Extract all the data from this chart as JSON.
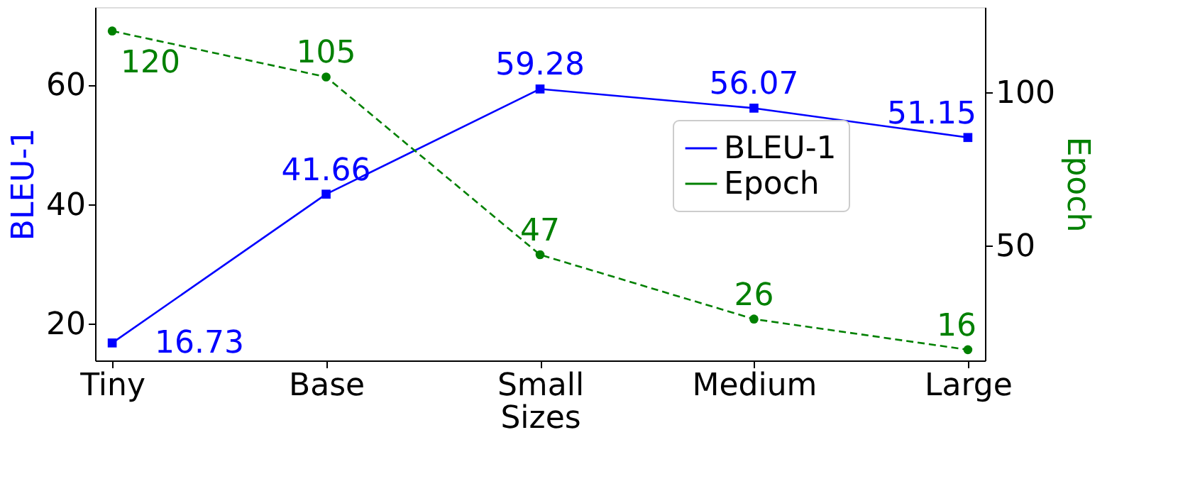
{
  "chart_data": {
    "type": "line",
    "xlabel": "Sizes",
    "ylabel": "BLEU-1",
    "y2label": "Epoch",
    "categories": [
      "Tiny",
      "Base",
      "Small",
      "Medium",
      "Large"
    ],
    "series": [
      {
        "name": "BLEU-1",
        "color": "#0000ff",
        "values": [
          16.73,
          41.66,
          59.28,
          56.07,
          51.15
        ],
        "marker": "square",
        "line_style": "solid"
      },
      {
        "name": "Epoch",
        "color": "#008000",
        "values": [
          120,
          105,
          47,
          26,
          16
        ],
        "marker": "circle",
        "line_style": "dashed",
        "axis": "y2"
      }
    ],
    "ylim": [
      13.8,
      73
    ],
    "yticks": [
      20,
      40,
      60
    ],
    "y2lim": [
      12.5,
      127.8
    ],
    "y2ticks": [
      50,
      100
    ],
    "data_labels": true,
    "grid": false,
    "legend": "center right"
  }
}
